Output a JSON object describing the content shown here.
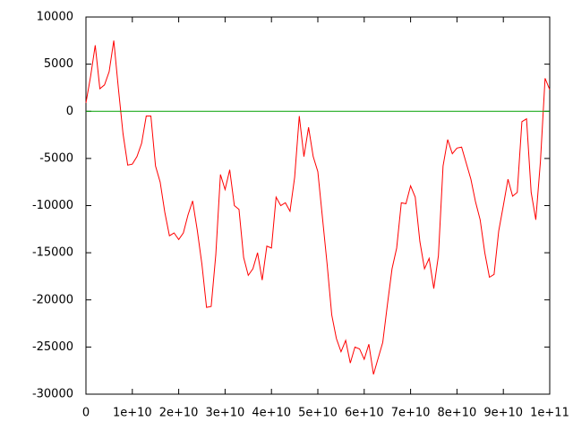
{
  "chart_data": {
    "type": "line",
    "xlim": [
      0,
      100000000000.0
    ],
    "ylim": [
      -30000,
      10000
    ],
    "xticks": [
      0,
      {
        "value": 10000000000.0,
        "label": "1e+10"
      },
      {
        "value": 20000000000.0,
        "label": "2e+10"
      },
      {
        "value": 30000000000.0,
        "label": "3e+10"
      },
      {
        "value": 40000000000.0,
        "label": "4e+10"
      },
      {
        "value": 50000000000.0,
        "label": "5e+10"
      },
      {
        "value": 60000000000.0,
        "label": "6e+10"
      },
      {
        "value": 70000000000.0,
        "label": "7e+10"
      },
      {
        "value": 80000000000.0,
        "label": "8e+10"
      },
      {
        "value": 90000000000.0,
        "label": "9e+10"
      },
      {
        "value": 100000000000.0,
        "label": "1e+11"
      }
    ],
    "yticks": [
      -30000,
      -25000,
      -20000,
      -15000,
      -10000,
      -5000,
      0,
      5000,
      10000
    ],
    "series": [
      {
        "color": "#ff0000",
        "x": [
          0,
          1000000000.0,
          2000000000.0,
          3000000000.0,
          4000000000.0,
          5000000000.0,
          6000000000.0,
          7000000000.0,
          8000000000.0,
          9000000000.0,
          10000000000.0,
          11000000000.0,
          12000000000.0,
          13000000000.0,
          14000000000.0,
          15000000000.0,
          16000000000.0,
          17000000000.0,
          18000000000.0,
          19000000000.0,
          20000000000.0,
          21000000000.0,
          22000000000.0,
          23000000000.0,
          24000000000.0,
          25000000000.0,
          26000000000.0,
          27000000000.0,
          28000000000.0,
          29000000000.0,
          30000000000.0,
          31000000000.0,
          32000000000.0,
          33000000000.0,
          34000000000.0,
          35000000000.0,
          36000000000.0,
          37000000000.0,
          38000000000.0,
          39000000000.0,
          40000000000.0,
          41000000000.0,
          42000000000.0,
          43000000000.0,
          44000000000.0,
          45000000000.0,
          46000000000.0,
          47000000000.0,
          48000000000.0,
          49000000000.0,
          50000000000.0,
          51000000000.0,
          52000000000.0,
          53000000000.0,
          54000000000.0,
          55000000000.0,
          56000000000.0,
          57000000000.0,
          58000000000.0,
          59000000000.0,
          60000000000.0,
          61000000000.0,
          62000000000.0,
          63000000000.0,
          64000000000.0,
          65000000000.0,
          66000000000.0,
          67000000000.0,
          68000000000.0,
          69000000000.0,
          70000000000.0,
          71000000000.0,
          72000000000.0,
          73000000000.0,
          74000000000.0,
          75000000000.0,
          76000000000.0,
          77000000000.0,
          78000000000.0,
          79000000000.0,
          80000000000.0,
          81000000000.0,
          82000000000.0,
          83000000000.0,
          84000000000.0,
          85000000000.0,
          86000000000.0,
          87000000000.0,
          88000000000.0,
          89000000000.0,
          90000000000.0,
          91000000000.0,
          92000000000.0,
          93000000000.0,
          94000000000.0,
          95000000000.0,
          96000000000.0,
          97000000000.0,
          98000000000.0,
          99000000000.0,
          100000000000.0
        ],
        "values": [
          900,
          3700,
          7000,
          2400,
          2800,
          4200,
          7500,
          2400,
          -2400,
          -5700,
          -5600,
          -4800,
          -3400,
          -500,
          -500,
          -5800,
          -7500,
          -10700,
          -13200,
          -12900,
          -13600,
          -12900,
          -11000,
          -9500,
          -12600,
          -16200,
          -20800,
          -20700,
          -15200,
          -6700,
          -8300,
          -6200,
          -10000,
          -10400,
          -15500,
          -17400,
          -16700,
          -15000,
          -17900,
          -14300,
          -14500,
          -9100,
          -10000,
          -9700,
          -10600,
          -7000,
          -500,
          -4800,
          -1700,
          -4800,
          -6400,
          -11300,
          -16200,
          -21600,
          -24100,
          -25500,
          -24300,
          -26700,
          -25000,
          -25200,
          -26300,
          -24700,
          -27900,
          -26200,
          -24500,
          -20500,
          -16700,
          -14500,
          -9700,
          -9800,
          -7900,
          -9100,
          -13800,
          -16700,
          -15600,
          -18800,
          -15300,
          -5800,
          -3000,
          -4500,
          -3900,
          -3800,
          -5500,
          -7200,
          -9600,
          -11500,
          -15000,
          -17600,
          -17300,
          -12700,
          -10000,
          -7200,
          -9000,
          -8600,
          -1100,
          -800,
          -8600,
          -11500,
          -5300,
          3500,
          2300
        ]
      },
      {
        "color": "#00a000",
        "x": [
          0,
          100000000000.0
        ],
        "values": [
          0,
          0
        ]
      }
    ]
  }
}
